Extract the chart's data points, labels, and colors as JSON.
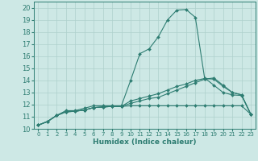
{
  "title": "",
  "xlabel": "Humidex (Indice chaleur)",
  "ylabel": "",
  "xlim": [
    -0.5,
    23.5
  ],
  "ylim": [
    10,
    20.5
  ],
  "yticks": [
    10,
    11,
    12,
    13,
    14,
    15,
    16,
    17,
    18,
    19,
    20
  ],
  "xticks": [
    0,
    1,
    2,
    3,
    4,
    5,
    6,
    7,
    8,
    9,
    10,
    11,
    12,
    13,
    14,
    15,
    16,
    17,
    18,
    19,
    20,
    21,
    22,
    23
  ],
  "bg_color": "#cde8e5",
  "grid_color": "#aed0cc",
  "line_color": "#2e7d72",
  "lines": [
    [
      10.3,
      10.6,
      11.1,
      11.5,
      11.5,
      11.7,
      11.9,
      11.9,
      11.9,
      11.9,
      14.0,
      16.2,
      16.6,
      17.6,
      19.0,
      19.8,
      19.85,
      19.2,
      14.2,
      13.6,
      13.0,
      12.8,
      12.75,
      11.2
    ],
    [
      10.3,
      10.6,
      11.1,
      11.4,
      11.45,
      11.55,
      11.75,
      11.8,
      11.85,
      11.85,
      12.1,
      12.3,
      12.5,
      12.6,
      12.9,
      13.2,
      13.5,
      13.8,
      14.1,
      14.2,
      13.6,
      13.0,
      12.8,
      11.2
    ],
    [
      10.3,
      10.6,
      11.1,
      11.4,
      11.45,
      11.55,
      11.75,
      11.8,
      11.85,
      11.85,
      11.9,
      11.9,
      11.9,
      11.9,
      11.9,
      11.9,
      11.9,
      11.9,
      11.9,
      11.9,
      11.9,
      11.9,
      11.9,
      11.2
    ],
    [
      10.3,
      10.6,
      11.1,
      11.4,
      11.45,
      11.55,
      11.75,
      11.8,
      11.85,
      11.85,
      12.3,
      12.5,
      12.7,
      12.9,
      13.2,
      13.5,
      13.7,
      14.0,
      14.15,
      14.1,
      13.5,
      13.0,
      12.8,
      11.2
    ]
  ]
}
